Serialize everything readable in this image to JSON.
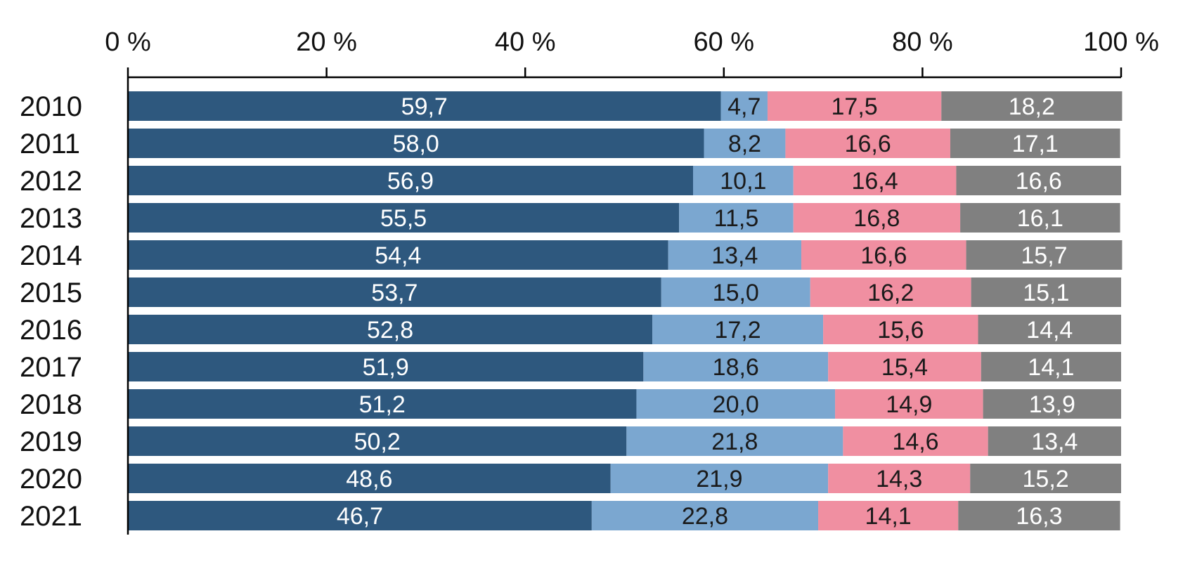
{
  "chart_data": {
    "type": "bar",
    "orientation": "horizontal",
    "stacked": true,
    "title": "",
    "xlabel": "",
    "ylabel": "",
    "xlim": [
      0,
      100
    ],
    "x_ticks": [
      "0 %",
      "20 %",
      "40 %",
      "60 %",
      "80 %",
      "100 %"
    ],
    "x_axis_position": "top",
    "grid": false,
    "legend": "none",
    "categories": [
      "2010",
      "2011",
      "2012",
      "2013",
      "2014",
      "2015",
      "2016",
      "2017",
      "2018",
      "2019",
      "2020",
      "2021"
    ],
    "series": [
      {
        "color": "#2e587e",
        "label_color": "#ffffff",
        "values": [
          59.7,
          58.0,
          56.9,
          55.5,
          54.4,
          53.7,
          52.8,
          51.9,
          51.2,
          50.2,
          48.6,
          46.7
        ],
        "labels": [
          "59,7",
          "58,0",
          "56,9",
          "55,5",
          "54,4",
          "53,7",
          "52,8",
          "51,9",
          "51,2",
          "50,2",
          "48,6",
          "46,7"
        ]
      },
      {
        "color": "#7ba7d0",
        "label_color": "#1a1a1a",
        "values": [
          4.7,
          8.2,
          10.1,
          11.5,
          13.4,
          15.0,
          17.2,
          18.6,
          20.0,
          21.8,
          21.9,
          22.8
        ],
        "labels": [
          "4,7",
          "8,2",
          "10,1",
          "11,5",
          "13,4",
          "15,0",
          "17,2",
          "18,6",
          "20,0",
          "21,8",
          "21,9",
          "22,8"
        ]
      },
      {
        "color": "#f08fa1",
        "label_color": "#1a1a1a",
        "values": [
          17.5,
          16.6,
          16.4,
          16.8,
          16.6,
          16.2,
          15.6,
          15.4,
          14.9,
          14.6,
          14.3,
          14.1
        ],
        "labels": [
          "17,5",
          "16,6",
          "16,4",
          "16,8",
          "16,6",
          "16,2",
          "15,6",
          "15,4",
          "14,9",
          "14,6",
          "14,3",
          "14,1"
        ]
      },
      {
        "color": "#808080",
        "label_color": "#ffffff",
        "values": [
          18.2,
          17.1,
          16.6,
          16.1,
          15.7,
          15.1,
          14.4,
          14.1,
          13.9,
          13.4,
          15.2,
          16.3
        ],
        "labels": [
          "18,2",
          "17,1",
          "16,6",
          "16,1",
          "15,7",
          "15,1",
          "14,4",
          "14,1",
          "13,9",
          "13,4",
          "15,2",
          "16,3"
        ]
      }
    ]
  }
}
